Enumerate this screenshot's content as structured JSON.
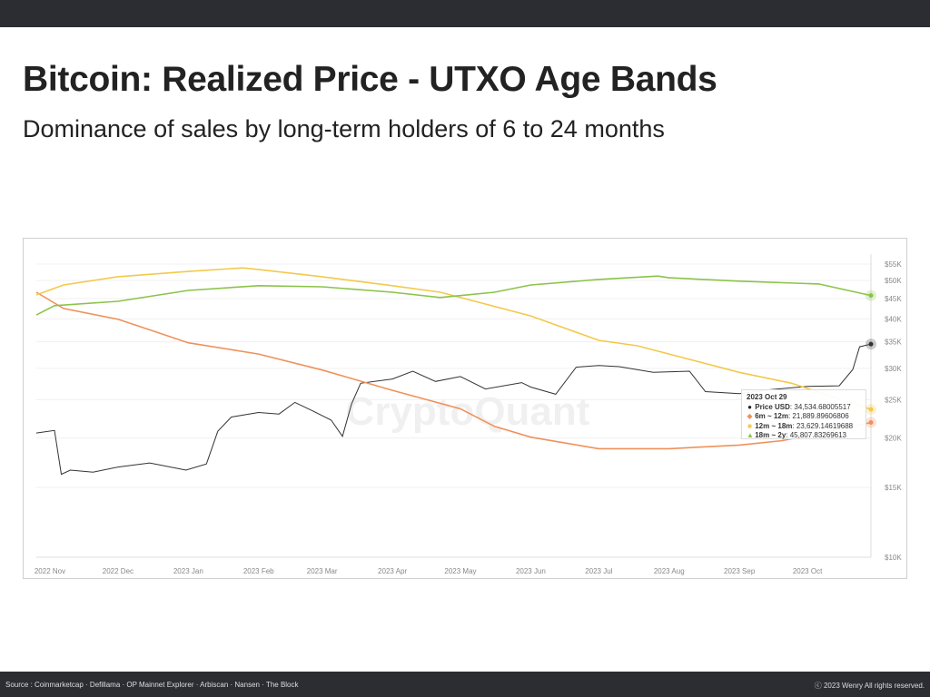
{
  "header": {
    "title": "Bitcoin: Realized Price - UTXO Age Bands",
    "subtitle": "Dominance of sales by long-term holders of 6 to 24 months"
  },
  "watermark": "CryptoQuant",
  "tooltip": {
    "date": "2023 Oct 29",
    "rows": [
      {
        "label": "Price USD",
        "value": "34,534.68005517",
        "color": "#222222",
        "marker": "●"
      },
      {
        "label": "6m ~ 12m",
        "value": "21,889.89606806",
        "color": "#f0915a",
        "marker": "◆"
      },
      {
        "label": "12m ~ 18m",
        "value": "23,629.14619688",
        "color": "#f2c94c",
        "marker": "■"
      },
      {
        "label": "18m ~ 2y",
        "value": "45,807.83269613",
        "color": "#8bc34a",
        "marker": "▲"
      }
    ]
  },
  "footer": {
    "source": "Source : Coinmarketcap · Defillama · OP Mainnet Explorer · Arbiscan · Nansen · The Block",
    "copyright": "ⓒ 2023 Wenry All rights reserved."
  },
  "chart_data": {
    "type": "line",
    "y_scale": "log",
    "ylim": [
      10000,
      55000
    ],
    "xlim": [
      "2022-10-26",
      "2023-10-29"
    ],
    "grid": true,
    "legend": "none",
    "x_ticks": [
      "2022 Nov",
      "2022 Dec",
      "2023 Jan",
      "2023 Feb",
      "2023 Mar",
      "2023 Apr",
      "2023 May",
      "2023 Jun",
      "2023 Jul",
      "2023 Aug",
      "2023 Sep",
      "2023 Oct"
    ],
    "x_tick_dates": [
      "2022-11-01",
      "2022-12-01",
      "2023-01-01",
      "2023-02-01",
      "2023-03-01",
      "2023-04-01",
      "2023-05-01",
      "2023-06-01",
      "2023-07-01",
      "2023-08-01",
      "2023-09-01",
      "2023-10-01"
    ],
    "y_ticks": [
      "$10K",
      "$15K",
      "$20K",
      "$25K",
      "$30K",
      "$35K",
      "$40K",
      "$45K",
      "$50K",
      "$55K"
    ],
    "y_tick_values": [
      10000,
      15000,
      20000,
      25000,
      30000,
      35000,
      40000,
      45000,
      50000,
      55000
    ],
    "series": [
      {
        "name": "Price USD",
        "color": "#333333",
        "points": [
          [
            "2022-10-26",
            20600
          ],
          [
            "2022-11-03",
            20900
          ],
          [
            "2022-11-06",
            16200
          ],
          [
            "2022-11-10",
            16600
          ],
          [
            "2022-11-20",
            16400
          ],
          [
            "2022-12-01",
            16900
          ],
          [
            "2022-12-15",
            17300
          ],
          [
            "2022-12-31",
            16600
          ],
          [
            "2023-01-09",
            17200
          ],
          [
            "2023-01-14",
            20800
          ],
          [
            "2023-01-20",
            22600
          ],
          [
            "2023-02-01",
            23200
          ],
          [
            "2023-02-10",
            23000
          ],
          [
            "2023-02-17",
            24600
          ],
          [
            "2023-02-25",
            23400
          ],
          [
            "2023-03-05",
            22200
          ],
          [
            "2023-03-10",
            20200
          ],
          [
            "2023-03-14",
            24400
          ],
          [
            "2023-03-18",
            27500
          ],
          [
            "2023-04-01",
            28200
          ],
          [
            "2023-04-10",
            29500
          ],
          [
            "2023-04-20",
            27800
          ],
          [
            "2023-05-01",
            28600
          ],
          [
            "2023-05-12",
            26600
          ],
          [
            "2023-05-28",
            27600
          ],
          [
            "2023-06-01",
            26900
          ],
          [
            "2023-06-12",
            25800
          ],
          [
            "2023-06-21",
            30200
          ],
          [
            "2023-07-01",
            30500
          ],
          [
            "2023-07-10",
            30300
          ],
          [
            "2023-07-25",
            29300
          ],
          [
            "2023-08-10",
            29500
          ],
          [
            "2023-08-17",
            26200
          ],
          [
            "2023-09-01",
            25900
          ],
          [
            "2023-09-15",
            26500
          ],
          [
            "2023-10-01",
            27000
          ],
          [
            "2023-10-15",
            27100
          ],
          [
            "2023-10-21",
            29800
          ],
          [
            "2023-10-24",
            34000
          ],
          [
            "2023-10-29",
            34535
          ]
        ]
      },
      {
        "name": "6m ~ 12m",
        "color": "#f0915a",
        "points": [
          [
            "2022-10-26",
            46700
          ],
          [
            "2022-11-07",
            42500
          ],
          [
            "2022-12-01",
            39900
          ],
          [
            "2022-12-17",
            37200
          ],
          [
            "2023-01-01",
            34800
          ],
          [
            "2023-02-01",
            32600
          ],
          [
            "2023-03-01",
            29700
          ],
          [
            "2023-04-01",
            26400
          ],
          [
            "2023-05-01",
            23700
          ],
          [
            "2023-05-16",
            21400
          ],
          [
            "2023-06-01",
            20100
          ],
          [
            "2023-07-01",
            18800
          ],
          [
            "2023-08-01",
            18800
          ],
          [
            "2023-09-01",
            19200
          ],
          [
            "2023-09-20",
            19700
          ],
          [
            "2023-10-29",
            21890
          ]
        ]
      },
      {
        "name": "12m ~ 18m",
        "color": "#f2c94c",
        "points": [
          [
            "2022-10-26",
            46000
          ],
          [
            "2022-11-07",
            48700
          ],
          [
            "2022-12-01",
            51100
          ],
          [
            "2023-01-01",
            52700
          ],
          [
            "2023-01-25",
            53800
          ],
          [
            "2023-02-01",
            53300
          ],
          [
            "2023-03-01",
            51100
          ],
          [
            "2023-04-01",
            48500
          ],
          [
            "2023-04-22",
            46700
          ],
          [
            "2023-05-01",
            45300
          ],
          [
            "2023-06-01",
            40700
          ],
          [
            "2023-07-01",
            35300
          ],
          [
            "2023-07-18",
            34200
          ],
          [
            "2023-08-01",
            32600
          ],
          [
            "2023-09-01",
            29300
          ],
          [
            "2023-09-24",
            27500
          ],
          [
            "2023-10-29",
            23630
          ]
        ]
      },
      {
        "name": "18m ~ 2y",
        "color": "#8bc34a",
        "points": [
          [
            "2022-10-26",
            40900
          ],
          [
            "2022-11-03",
            43200
          ],
          [
            "2022-12-01",
            44300
          ],
          [
            "2023-01-01",
            47200
          ],
          [
            "2023-02-01",
            48500
          ],
          [
            "2023-03-01",
            48200
          ],
          [
            "2023-04-01",
            46700
          ],
          [
            "2023-04-22",
            45300
          ],
          [
            "2023-05-16",
            46700
          ],
          [
            "2023-06-01",
            48700
          ],
          [
            "2023-07-01",
            50300
          ],
          [
            "2023-07-27",
            51300
          ],
          [
            "2023-08-01",
            50800
          ],
          [
            "2023-09-01",
            49800
          ],
          [
            "2023-10-06",
            49000
          ],
          [
            "2023-10-29",
            45808
          ]
        ]
      }
    ]
  }
}
